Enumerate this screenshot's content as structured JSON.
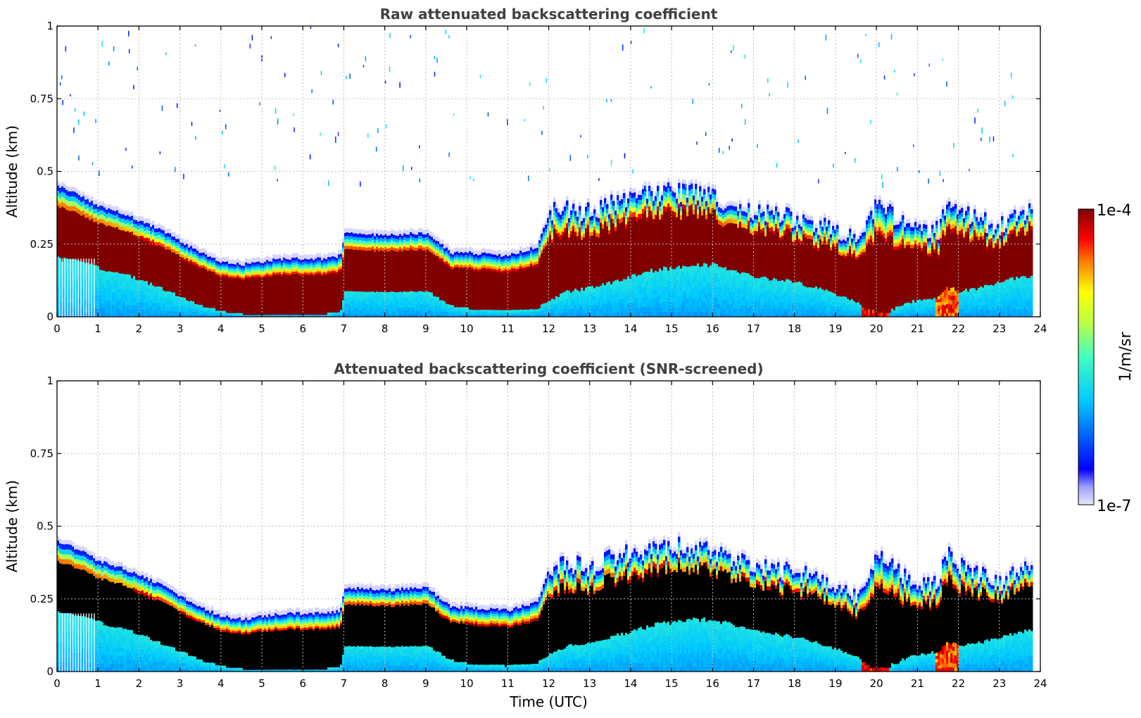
{
  "chart_data": [
    {
      "type": "heatmap",
      "title": "Raw attenuated backscattering coefficient",
      "xlabel": "",
      "ylabel": "Altitude (km)",
      "xlim": [
        0,
        24
      ],
      "ylim": [
        0,
        1
      ],
      "xticks": [
        "0",
        "1",
        "2",
        "3",
        "4",
        "5",
        "6",
        "7",
        "8",
        "9",
        "10",
        "11",
        "12",
        "13",
        "14",
        "15",
        "16",
        "17",
        "18",
        "19",
        "20",
        "21",
        "22",
        "23",
        "24"
      ],
      "yticks": [
        "0",
        "0.25",
        "0.5",
        "0.75",
        "1"
      ],
      "grid": true,
      "screened": false,
      "boundary_layer_top_km": {
        "x": [
          0,
          0.5,
          1,
          1.5,
          2,
          2.5,
          3,
          3.5,
          4,
          4.5,
          5,
          5.5,
          6,
          6.5,
          6.9,
          7,
          8,
          9,
          9.6,
          10,
          11,
          11.7,
          12,
          12.5,
          13,
          13.5,
          14,
          14.5,
          15,
          15.5,
          16,
          16.5,
          17,
          17.5,
          18,
          18.5,
          19,
          19.5,
          19.8,
          20,
          20.3,
          20.6,
          21,
          21.5,
          21.7,
          22,
          22.5,
          23,
          23.5,
          23.8
        ],
        "y": [
          0.45,
          0.42,
          0.38,
          0.36,
          0.33,
          0.3,
          0.26,
          0.22,
          0.19,
          0.18,
          0.19,
          0.2,
          0.2,
          0.2,
          0.21,
          0.29,
          0.28,
          0.29,
          0.22,
          0.22,
          0.21,
          0.24,
          0.36,
          0.37,
          0.36,
          0.39,
          0.41,
          0.42,
          0.43,
          0.43,
          0.41,
          0.38,
          0.36,
          0.35,
          0.34,
          0.32,
          0.29,
          0.26,
          0.32,
          0.42,
          0.36,
          0.33,
          0.29,
          0.3,
          0.41,
          0.36,
          0.33,
          0.31,
          0.35,
          0.36
        ]
      },
      "layer_base_km": {
        "x": [
          0,
          0.5,
          1,
          1.5,
          2,
          2.5,
          3,
          3.5,
          4,
          4.5,
          5,
          5.5,
          6,
          6.5,
          6.9,
          7,
          8,
          9,
          9.6,
          10,
          11,
          11.7,
          12,
          12.5,
          13,
          13.5,
          14,
          14.5,
          15,
          15.5,
          16,
          16.5,
          17,
          17.5,
          18,
          18.5,
          19,
          19.5,
          19.8,
          20,
          20.3,
          20.6,
          21,
          21.5,
          21.7,
          22,
          22.5,
          23,
          23.5,
          23.8
        ],
        "y": [
          0.2,
          0.19,
          0.17,
          0.15,
          0.13,
          0.1,
          0.07,
          0.04,
          0.02,
          0.01,
          0.01,
          0.01,
          0.01,
          0.01,
          0.02,
          0.09,
          0.09,
          0.09,
          0.04,
          0.03,
          0.02,
          0.03,
          0.06,
          0.09,
          0.1,
          0.12,
          0.14,
          0.16,
          0.17,
          0.18,
          0.18,
          0.16,
          0.14,
          0.13,
          0.12,
          0.1,
          0.08,
          0.05,
          0.02,
          0.02,
          0.02,
          0.04,
          0.06,
          0.07,
          0.1,
          0.09,
          0.1,
          0.12,
          0.14,
          0.14
        ]
      }
    },
    {
      "type": "heatmap",
      "title": "Attenuated backscattering coefficient (SNR-screened)",
      "xlabel": "Time (UTC)",
      "ylabel": "Altitude (km)",
      "xlim": [
        0,
        24
      ],
      "ylim": [
        0,
        1
      ],
      "xticks": [
        "0",
        "1",
        "2",
        "3",
        "4",
        "5",
        "6",
        "7",
        "8",
        "9",
        "10",
        "11",
        "12",
        "13",
        "14",
        "15",
        "16",
        "17",
        "18",
        "19",
        "20",
        "21",
        "22",
        "23",
        "24"
      ],
      "yticks": [
        "0",
        "0.25",
        "0.5",
        "0.75",
        "1"
      ],
      "grid": true,
      "screened": true
    }
  ],
  "colorbar": {
    "min_label": "1e-7",
    "max_label": "1e-4",
    "units": "1/m/sr",
    "colormap": "jet",
    "saturation_color_raw": "#800000",
    "saturation_color_screened": "#000000"
  }
}
